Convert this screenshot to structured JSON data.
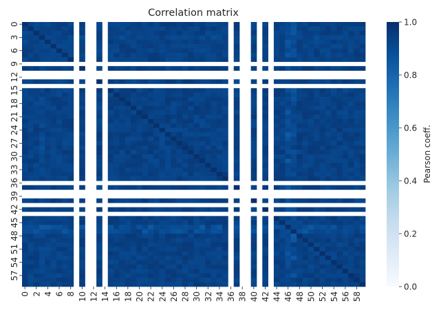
{
  "chart_data": {
    "type": "heatmap",
    "title": "Correlation matrix",
    "xlabel": "",
    "ylabel": "",
    "n": 60,
    "row_count": 60,
    "col_count": 60,
    "x_tick_labels": [
      "0",
      "2",
      "4",
      "6",
      "8",
      "10",
      "12",
      "14",
      "16",
      "18",
      "20",
      "22",
      "24",
      "26",
      "28",
      "30",
      "32",
      "34",
      "36",
      "38",
      "40",
      "42",
      "44",
      "46",
      "48",
      "50",
      "52",
      "54",
      "56",
      "58"
    ],
    "y_tick_labels": [
      "0",
      "3",
      "6",
      "9",
      "12",
      "15",
      "18",
      "21",
      "24",
      "27",
      "30",
      "33",
      "36",
      "39",
      "42",
      "45",
      "48",
      "51",
      "54",
      "57"
    ],
    "blank_indices": [
      9,
      11,
      12,
      14,
      36,
      38,
      39,
      41,
      43
    ],
    "approx_value_range": [
      0.8,
      1.0
    ],
    "colorbar": {
      "label": "Pearson coeff.",
      "min": 0.0,
      "max": 1.0,
      "ticks": [
        "0.0",
        "0.2",
        "0.4",
        "0.6",
        "0.8",
        "1.0"
      ],
      "colormap": "Blues",
      "color_low": "#f7fbff",
      "color_high": "#08306b"
    }
  }
}
